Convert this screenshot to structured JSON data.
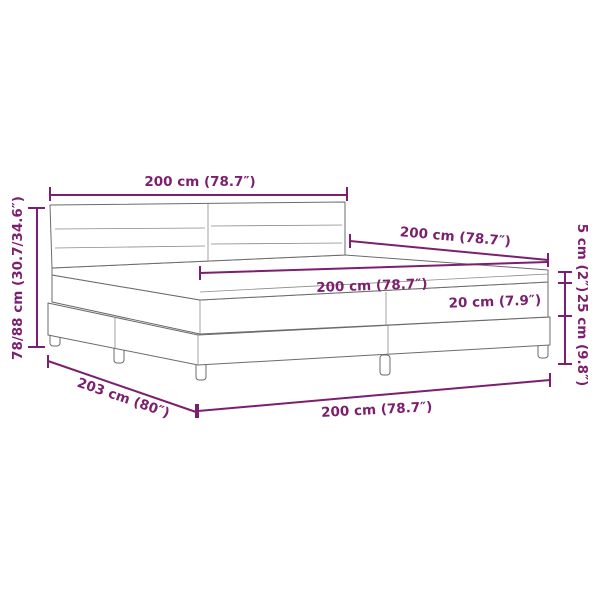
{
  "colors": {
    "accent": "#7b1f6e",
    "line_art": "#6b6b6b"
  },
  "labels": {
    "headboard_width": "200 cm (78.7″)",
    "total_height": "78/88 cm (30.7/34.6″)",
    "length": "203 cm (80″)",
    "front_width": "200 cm (78.7″)",
    "side_length": "200 cm (78.7″)",
    "mattress_width": "200 cm (78.7″)",
    "mattress_height": "20 cm (7.9″)",
    "topper_height": "5 cm (2″)",
    "base_height": "25 cm (9.8″)"
  }
}
